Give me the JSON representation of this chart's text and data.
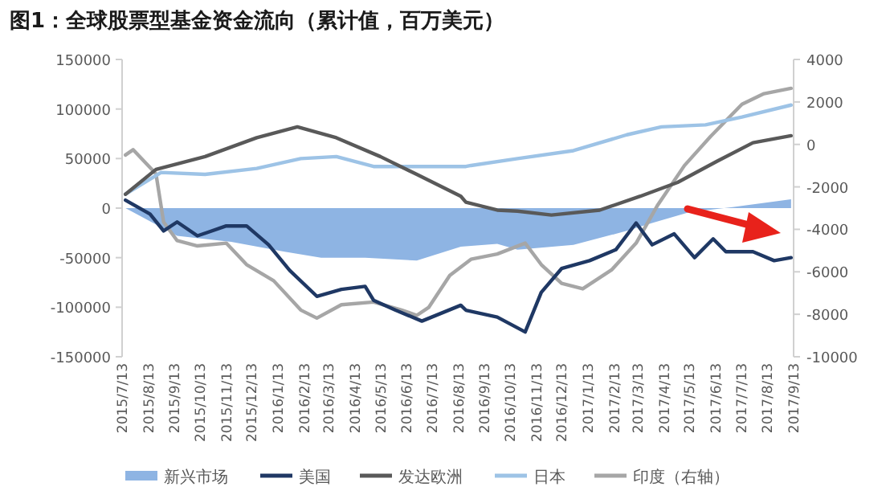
{
  "chart_data": {
    "type": "line",
    "title": "图1：全球股票型基金资金流向（累计值，百万美元）",
    "xlim": [
      "2015-07-13",
      "2017-09-13"
    ],
    "xticks": [
      {
        "value": "2015-07-13",
        "label": "2015/7/13"
      },
      {
        "value": "2015-08-13",
        "label": "2015/8/13"
      },
      {
        "value": "2015-09-13",
        "label": "2015/9/13"
      },
      {
        "value": "2015-10-13",
        "label": "2015/10/13"
      },
      {
        "value": "2015-11-13",
        "label": "2015/11/13"
      },
      {
        "value": "2015-12-13",
        "label": "2015/12/13"
      },
      {
        "value": "2016-01-13",
        "label": "2016/1/13"
      },
      {
        "value": "2016-02-13",
        "label": "2016/2/13"
      },
      {
        "value": "2016-03-13",
        "label": "2016/3/13"
      },
      {
        "value": "2016-04-13",
        "label": "2016/4/13"
      },
      {
        "value": "2016-05-13",
        "label": "2016/5/13"
      },
      {
        "value": "2016-06-13",
        "label": "2016/6/13"
      },
      {
        "value": "2016-07-13",
        "label": "2016/7/13"
      },
      {
        "value": "2016-08-13",
        "label": "2016/8/13"
      },
      {
        "value": "2016-09-13",
        "label": "2016/9/13"
      },
      {
        "value": "2016-10-13",
        "label": "2016/10/13"
      },
      {
        "value": "2016-11-13",
        "label": "2016/11/13"
      },
      {
        "value": "2016-12-13",
        "label": "2016/12/13"
      },
      {
        "value": "2017-01-13",
        "label": "2017/1/13"
      },
      {
        "value": "2017-02-13",
        "label": "2017/2/13"
      },
      {
        "value": "2017-03-13",
        "label": "2017/3/13"
      },
      {
        "value": "2017-04-13",
        "label": "2017/4/13"
      },
      {
        "value": "2017-05-13",
        "label": "2017/5/13"
      },
      {
        "value": "2017-06-13",
        "label": "2017/6/13"
      },
      {
        "value": "2017-07-13",
        "label": "2017/7/13"
      },
      {
        "value": "2017-08-13",
        "label": "2017/8/13"
      },
      {
        "value": "2017-09-13",
        "label": "2017/9/13"
      }
    ],
    "ylim": [
      -150000,
      150000
    ],
    "yticks": [
      -150000,
      -100000,
      -50000,
      0,
      50000,
      100000,
      150000
    ],
    "y2lim": [
      -10000,
      4000
    ],
    "y2ticks": [
      -10000,
      -8000,
      -6000,
      -4000,
      -2000,
      0,
      2000,
      4000
    ],
    "legend": "bottom",
    "series": [
      {
        "name": "新兴市场",
        "type": "area",
        "color": "#8eb4e3",
        "x": [
          "2015-07-17",
          "2015-09-16",
          "2015-11-19",
          "2016-01-21",
          "2016-03-04",
          "2016-04-25",
          "2016-06-25",
          "2016-08-16",
          "2016-09-28",
          "2016-10-22",
          "2016-12-27",
          "2017-02-28",
          "2017-03-30",
          "2017-05-13",
          "2017-07-03",
          "2017-09-10"
        ],
        "values": [
          0,
          -28000,
          -34000,
          -44000,
          -50000,
          -50000,
          -53000,
          -39000,
          -36000,
          -42000,
          -37000,
          -23000,
          -15000,
          -4000,
          1000,
          9000
        ]
      },
      {
        "name": "美国",
        "type": "line",
        "color": "#1f3864",
        "x": [
          "2015-07-17",
          "2015-08-15",
          "2015-08-31",
          "2015-09-16",
          "2015-10-10",
          "2015-11-13",
          "2015-12-07",
          "2016-01-02",
          "2016-01-27",
          "2016-02-28",
          "2016-03-28",
          "2016-04-25",
          "2016-05-05",
          "2016-05-31",
          "2016-07-01",
          "2016-08-16",
          "2016-08-22",
          "2016-09-28",
          "2016-10-31",
          "2016-11-19",
          "2016-12-13",
          "2017-01-15",
          "2017-02-15",
          "2017-03-11",
          "2017-03-30",
          "2017-04-25",
          "2017-05-19",
          "2017-06-10",
          "2017-06-25",
          "2017-07-27",
          "2017-08-21",
          "2017-09-10"
        ],
        "values": [
          8000,
          -6000,
          -23000,
          -14000,
          -28000,
          -18000,
          -18000,
          -37000,
          -63000,
          -89000,
          -82000,
          -79000,
          -93000,
          -103000,
          -114000,
          -98000,
          -103000,
          -110000,
          -125000,
          -85000,
          -61000,
          -53000,
          -42000,
          -15000,
          -37000,
          -26000,
          -50000,
          -31000,
          -44000,
          -44000,
          -53000,
          -50000
        ]
      },
      {
        "name": "发达欧洲",
        "type": "line",
        "color": "#595959",
        "x": [
          "2015-07-17",
          "2015-08-22",
          "2015-10-19",
          "2015-12-19",
          "2016-02-05",
          "2016-03-22",
          "2016-05-13",
          "2016-06-25",
          "2016-08-16",
          "2016-08-22",
          "2016-09-28",
          "2016-10-22",
          "2016-12-01",
          "2017-01-27",
          "2017-03-16",
          "2017-04-29",
          "2017-06-14",
          "2017-07-27",
          "2017-09-10"
        ],
        "values": [
          14000,
          39000,
          52000,
          71000,
          82000,
          71000,
          52000,
          34000,
          12000,
          6000,
          -2000,
          -3000,
          -7000,
          -2000,
          12000,
          26000,
          47000,
          66000,
          73000
        ]
      },
      {
        "name": "日本",
        "type": "line",
        "color": "#9dc3e6",
        "x": [
          "2015-07-17",
          "2015-08-28",
          "2015-10-19",
          "2015-12-19",
          "2016-02-09",
          "2016-03-22",
          "2016-05-05",
          "2016-06-25",
          "2016-08-22",
          "2016-08-28",
          "2016-10-22",
          "2016-12-27",
          "2017-02-28",
          "2017-04-10",
          "2017-06-01",
          "2017-07-14",
          "2017-09-10"
        ],
        "values": [
          14000,
          36000,
          34000,
          40000,
          50000,
          52000,
          42000,
          42000,
          42000,
          43000,
          50000,
          58000,
          74000,
          82000,
          84000,
          92000,
          104000
        ]
      },
      {
        "name": "印度（右轴）",
        "type": "line",
        "axis": "y2",
        "color": "#a6a6a6",
        "x": [
          "2015-07-17",
          "2015-07-26",
          "2015-08-22",
          "2015-08-31",
          "2015-09-16",
          "2015-10-10",
          "2015-11-13",
          "2015-12-07",
          "2016-01-08",
          "2016-02-09",
          "2016-02-28",
          "2016-03-28",
          "2016-05-05",
          "2016-06-07",
          "2016-06-25",
          "2016-07-09",
          "2016-08-03",
          "2016-08-28",
          "2016-09-28",
          "2016-10-31",
          "2016-11-19",
          "2016-12-13",
          "2017-01-07",
          "2017-02-10",
          "2017-03-11",
          "2017-04-05",
          "2017-05-07",
          "2017-06-07",
          "2017-07-14",
          "2017-08-09",
          "2017-09-10"
        ],
        "values": [
          -500,
          -250,
          -1380,
          -3650,
          -4530,
          -4780,
          -4650,
          -5660,
          -6420,
          -7800,
          -8180,
          -7550,
          -7420,
          -7800,
          -8050,
          -7680,
          -6170,
          -5410,
          -5160,
          -4650,
          -5660,
          -6540,
          -6800,
          -5910,
          -4650,
          -2890,
          -1000,
          380,
          1890,
          2390,
          2640
        ]
      }
    ]
  }
}
